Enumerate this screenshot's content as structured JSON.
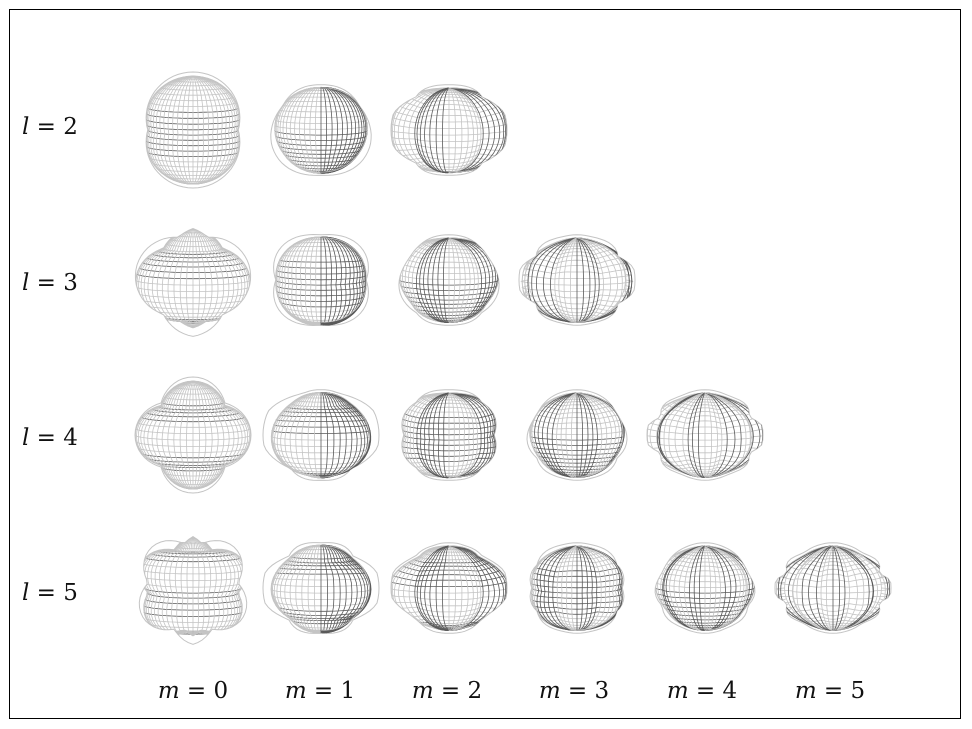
{
  "row_labels": [
    {
      "var": "l",
      "eq": " = ",
      "val": "2"
    },
    {
      "var": "l",
      "eq": " = ",
      "val": "3"
    },
    {
      "var": "l",
      "eq": " = ",
      "val": "4"
    },
    {
      "var": "l",
      "eq": " = ",
      "val": "5"
    }
  ],
  "col_labels": [
    {
      "var": "m",
      "eq": " = ",
      "val": "0"
    },
    {
      "var": "m",
      "eq": " = ",
      "val": "1"
    },
    {
      "var": "m",
      "eq": " = ",
      "val": "2"
    },
    {
      "var": "m",
      "eq": " = ",
      "val": "3"
    },
    {
      "var": "m",
      "eq": " = ",
      "val": "4"
    },
    {
      "var": "m",
      "eq": " = ",
      "val": "5"
    }
  ],
  "harmonics": [
    {
      "l": 2,
      "m": 0
    },
    {
      "l": 2,
      "m": 1
    },
    {
      "l": 2,
      "m": 2
    },
    {
      "l": 3,
      "m": 0
    },
    {
      "l": 3,
      "m": 1
    },
    {
      "l": 3,
      "m": 2
    },
    {
      "l": 3,
      "m": 3
    },
    {
      "l": 4,
      "m": 0
    },
    {
      "l": 4,
      "m": 1
    },
    {
      "l": 4,
      "m": 2
    },
    {
      "l": 4,
      "m": 3
    },
    {
      "l": 4,
      "m": 4
    },
    {
      "l": 5,
      "m": 0
    },
    {
      "l": 5,
      "m": 1
    },
    {
      "l": 5,
      "m": 2
    },
    {
      "l": 5,
      "m": 3
    },
    {
      "l": 5,
      "m": 4
    },
    {
      "l": 5,
      "m": 5
    }
  ],
  "colors": {
    "light_mesh": "#c4c4c4",
    "dark_mesh": "#5a5a5a",
    "fill": "#ffffff",
    "frame": "#000000"
  }
}
